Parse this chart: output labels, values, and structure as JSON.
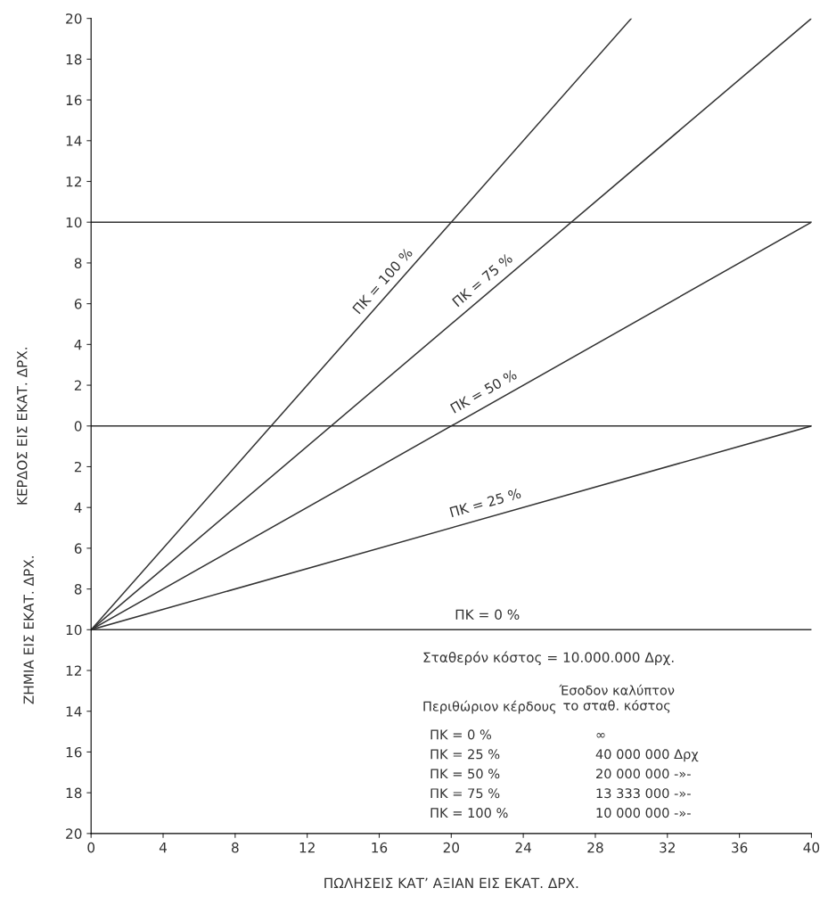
{
  "chart_data": {
    "type": "line",
    "xlabel": "ΠΩΛΗΣΕΙΣ ΚΑΤ’ ΑΞΙΑΝ ΕΙΣ ΕΚΑΤ. ΔΡΧ.",
    "ylabel": "ΚΕΡΔΟΣ ΕΙΣ ΕΚΑΤ. ΔΡΧ.",
    "series": [
      {
        "name": "ΠΚ = 100 %",
        "color": "#333333",
        "x": [
          0,
          30
        ],
        "values": [
          -10,
          20
        ]
      },
      {
        "name": "ΠΚ = 75 %",
        "color": "#333333",
        "x": [
          0,
          40
        ],
        "values": [
          -10,
          20
        ]
      },
      {
        "name": "ΠΚ = 50 %",
        "color": "#333333",
        "x": [
          0,
          40
        ],
        "values": [
          -10,
          10
        ]
      },
      {
        "name": "ΠΚ = 25 %",
        "color": "#333333",
        "x": [
          0,
          40
        ],
        "values": [
          -10,
          0
        ]
      },
      {
        "name": "ΠΚ = 0 %",
        "color": "#333333",
        "x": [
          0,
          40
        ],
        "values": [
          -10,
          -10
        ]
      }
    ],
    "ref_lines": [
      {
        "axis": "y",
        "value": 10,
        "color": "#333333"
      },
      {
        "axis": "y",
        "value": 0,
        "color": "#333333"
      }
    ],
    "xlim": [
      0,
      40
    ],
    "ylim": [
      -20,
      20
    ],
    "xticks": [
      0,
      4,
      8,
      12,
      16,
      20,
      24,
      28,
      32,
      36,
      40
    ],
    "yticks": [
      {
        "value": -20,
        "label": "20"
      },
      {
        "value": -18,
        "label": "18"
      },
      {
        "value": -16,
        "label": "16"
      },
      {
        "value": -14,
        "label": "14"
      },
      {
        "value": -12,
        "label": "12"
      },
      {
        "value": -10,
        "label": "10"
      },
      {
        "value": -8,
        "label": "8"
      },
      {
        "value": -6,
        "label": "6"
      },
      {
        "value": -4,
        "label": "4"
      },
      {
        "value": -2,
        "label": "2"
      },
      0,
      2,
      4,
      6,
      8,
      10,
      12,
      14,
      16,
      18,
      20
    ],
    "grid": false,
    "legend": false,
    "marker": "none",
    "line_style": "solid",
    "annotations": [
      "ΖΗΜΙΑ ΕΙΣ ΕΚΑΤ. ΔΡΧ.",
      "Σταθερόν κόστος = 10.000.000 Δρχ.",
      "Έσοδον καλύπτον\nτο σταθ. κόστος",
      "Περιθώριον κέρδους",
      "ΠΚ = 0 %",
      "∞",
      "ΠΚ = 25 %",
      "40 000 000 Δρχ",
      "ΠΚ = 50 %",
      "20 000 000 -»-",
      "ΠΚ = 75 %",
      "13 333 000 -»-",
      "ΠΚ = 100 %",
      "10 000 000 -»-"
    ]
  }
}
